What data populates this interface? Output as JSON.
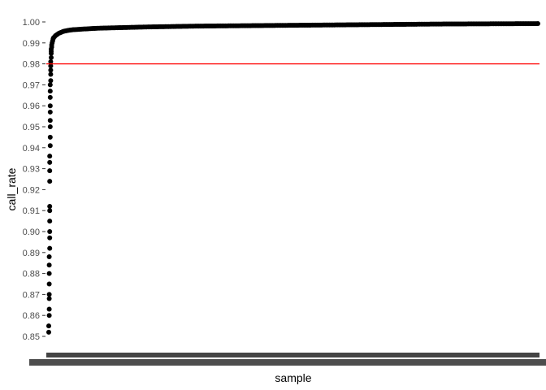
{
  "chart_data": {
    "type": "scatter",
    "title": "",
    "xlabel": "sample",
    "ylabel": "call_rate",
    "ylim": [
      0.845,
      1.0035
    ],
    "yticks": [
      0.85,
      0.86,
      0.87,
      0.88,
      0.89,
      0.9,
      0.91,
      0.92,
      0.93,
      0.94,
      0.95,
      0.96,
      0.97,
      0.98,
      0.99,
      1.0
    ],
    "ytick_labels": [
      "0.85",
      "0.86",
      "0.87",
      "0.88",
      "0.89",
      "0.90",
      "0.91",
      "0.92",
      "0.93",
      "0.94",
      "0.95",
      "0.96",
      "0.97",
      "0.98",
      "0.99",
      "1.00"
    ],
    "xlim": [
      0,
      1
    ],
    "x_ticks_unreadable": true,
    "grid": false,
    "legend": "none",
    "threshold": {
      "y": 0.98,
      "color": "#ff0000"
    },
    "point_color": "#000000",
    "x": [
      0.0,
      0.0,
      0.001,
      0.001,
      0.001,
      0.001,
      0.001,
      0.001,
      0.001,
      0.001,
      0.002,
      0.002,
      0.002,
      0.002,
      0.002,
      0.002,
      0.002,
      0.002,
      0.002,
      0.002,
      0.003,
      0.003,
      0.003,
      0.003,
      0.003,
      0.003,
      0.003,
      0.003,
      0.003,
      0.004,
      0.004,
      0.004,
      0.004,
      0.004,
      0.005,
      0.005,
      0.005,
      0.005,
      0.006,
      0.006,
      0.007,
      0.008,
      0.009,
      0.01,
      0.012,
      0.014,
      0.017,
      0.02,
      0.025,
      0.03,
      0.04,
      0.05,
      0.07,
      0.1,
      0.15,
      0.2,
      0.3,
      0.4,
      0.5,
      0.6,
      0.7,
      0.8,
      0.9,
      1.0
    ],
    "values": [
      0.852,
      0.855,
      0.86,
      0.863,
      0.868,
      0.87,
      0.875,
      0.88,
      0.884,
      0.888,
      0.892,
      0.897,
      0.9,
      0.905,
      0.91,
      0.912,
      0.924,
      0.929,
      0.933,
      0.936,
      0.941,
      0.945,
      0.95,
      0.953,
      0.957,
      0.96,
      0.964,
      0.967,
      0.97,
      0.972,
      0.975,
      0.977,
      0.979,
      0.981,
      0.983,
      0.985,
      0.986,
      0.987,
      0.988,
      0.989,
      0.99,
      0.991,
      0.992,
      0.9925,
      0.993,
      0.9935,
      0.994,
      0.9945,
      0.995,
      0.9955,
      0.996,
      0.9963,
      0.9966,
      0.997,
      0.9973,
      0.9976,
      0.998,
      0.9982,
      0.9984,
      0.9986,
      0.9988,
      0.999,
      0.9991,
      0.9992
    ]
  }
}
